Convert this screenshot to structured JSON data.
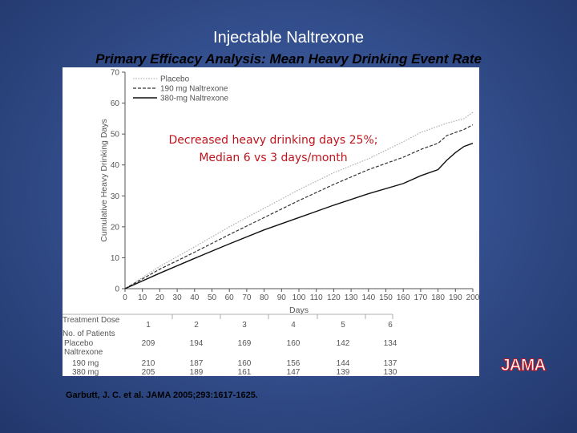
{
  "slide": {
    "title": "Injectable Naltrexone",
    "subtitle": "Primary Efficacy Analysis: Mean Heavy Drinking Event Rate",
    "callout_line1": "Decreased heavy drinking days 25%;",
    "callout_line2": "Median 6 vs 3 days/month",
    "citation": "Garbutt, J. C. et al. JAMA 2005;293:1617-1625.",
    "logo": "JAMA"
  },
  "chart_data": {
    "type": "line",
    "xlabel": "Days",
    "ylabel": "Cumulative Heavy Drinking Days",
    "xlim": [
      0,
      200
    ],
    "ylim": [
      0,
      70
    ],
    "xticks": [
      "0",
      "10",
      "20",
      "30",
      "40",
      "50",
      "60",
      "70",
      "80",
      "90",
      "100",
      "110",
      "120",
      "130",
      "140",
      "150",
      "160",
      "170",
      "180",
      "190",
      "200"
    ],
    "yticks": [
      "0",
      "10",
      "20",
      "30",
      "40",
      "50",
      "60",
      "70"
    ],
    "legend_position": "top-left",
    "x": [
      0,
      20,
      40,
      60,
      80,
      100,
      120,
      140,
      160,
      170,
      180,
      185,
      190,
      195,
      200
    ],
    "series": [
      {
        "name": "Placebo",
        "style": "dotted",
        "color": "#aaaaaa",
        "values": [
          0,
          7.2,
          13.5,
          20,
          26,
          32,
          37.5,
          42,
          47.5,
          50.5,
          52.5,
          53.5,
          54.2,
          55,
          57
        ]
      },
      {
        "name": "190 mg Naltrexone",
        "style": "dashed",
        "color": "#333333",
        "values": [
          0,
          6.3,
          11.8,
          17.5,
          23,
          28.5,
          33.7,
          38.5,
          42.5,
          45,
          47,
          49.5,
          50.5,
          51.5,
          53
        ]
      },
      {
        "name": "380-mg Naltrexone",
        "style": "solid",
        "color": "#111111",
        "values": [
          0,
          5,
          9.8,
          14.5,
          19,
          23,
          27,
          30.7,
          34,
          36.5,
          38.5,
          41.5,
          44,
          46,
          47
        ]
      }
    ],
    "table": {
      "header_label": "Treatment Dose",
      "dose_labels": [
        "1",
        "2",
        "3",
        "4",
        "5",
        "6"
      ],
      "patients_label": "No. of Patients",
      "rows": [
        {
          "label": "Placebo",
          "values": [
            "209",
            "194",
            "169",
            "160",
            "142",
            "134"
          ]
        },
        {
          "label": "Naltrexone",
          "values": []
        },
        {
          "label": "190 mg",
          "values": [
            "210",
            "187",
            "160",
            "156",
            "144",
            "137"
          ]
        },
        {
          "label": "380 mg",
          "values": [
            "205",
            "189",
            "161",
            "147",
            "139",
            "130"
          ]
        }
      ]
    }
  }
}
